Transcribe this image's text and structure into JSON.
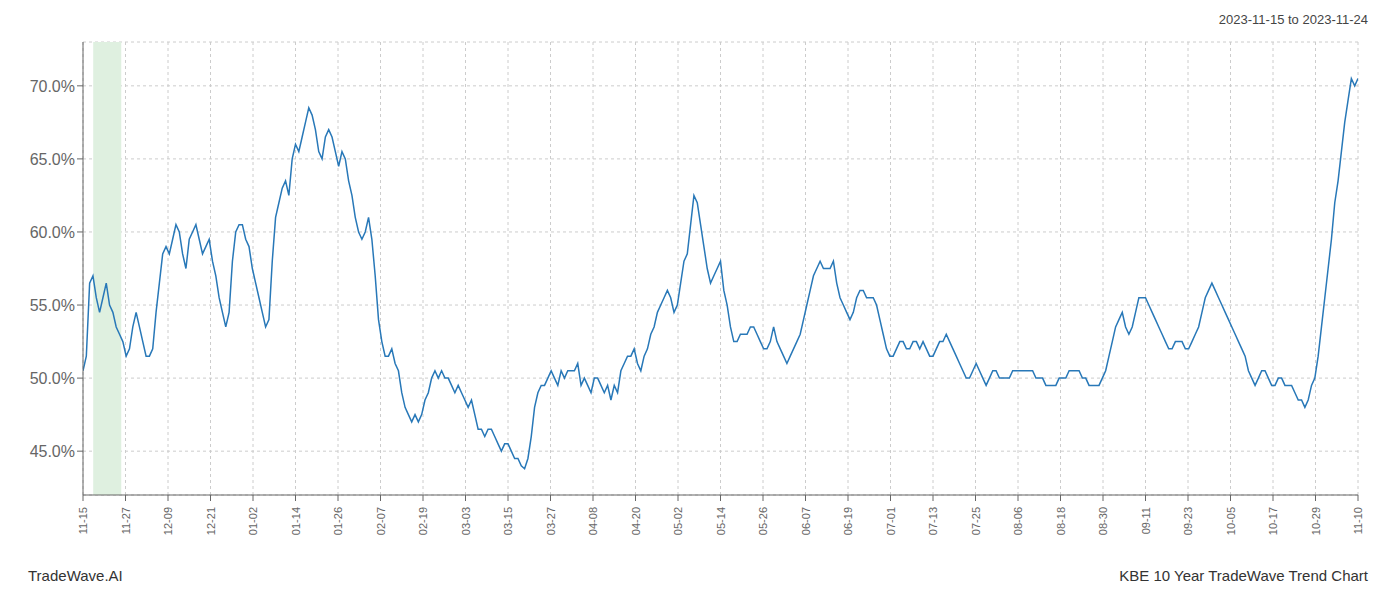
{
  "chart_data": {
    "type": "line",
    "title": "KBE 10 Year TradeWave Trend Chart",
    "subtitle": "2023-11-15 to 2023-11-24",
    "annotations": [
      "TradeWave.AI"
    ],
    "color": "#2878b8",
    "grid": true,
    "line_style": "solid",
    "highlight": {
      "x": [
        3.072,
        11.52
      ],
      "color": "#dff0e0"
    },
    "xlim": [
      0,
      384
    ],
    "xticks": [
      {
        "value": 0,
        "label": "11-15"
      },
      {
        "value": 12.8,
        "label": "11-27"
      },
      {
        "value": 25.6,
        "label": "12-09"
      },
      {
        "value": 38.4,
        "label": "12-21"
      },
      {
        "value": 51.2,
        "label": "01-02"
      },
      {
        "value": 64,
        "label": "01-14"
      },
      {
        "value": 76.8,
        "label": "01-26"
      },
      {
        "value": 89.6,
        "label": "02-07"
      },
      {
        "value": 102.4,
        "label": "02-19"
      },
      {
        "value": 115.2,
        "label": "03-03"
      },
      {
        "value": 128,
        "label": "03-15"
      },
      {
        "value": 140.8,
        "label": "03-27"
      },
      {
        "value": 153.6,
        "label": "04-08"
      },
      {
        "value": 166.4,
        "label": "04-20"
      },
      {
        "value": 179.2,
        "label": "05-02"
      },
      {
        "value": 192,
        "label": "05-14"
      },
      {
        "value": 204.8,
        "label": "05-26"
      },
      {
        "value": 217.6,
        "label": "06-07"
      },
      {
        "value": 230.4,
        "label": "06-19"
      },
      {
        "value": 243.2,
        "label": "07-01"
      },
      {
        "value": 256,
        "label": "07-13"
      },
      {
        "value": 268.8,
        "label": "07-25"
      },
      {
        "value": 281.6,
        "label": "08-06"
      },
      {
        "value": 294.4,
        "label": "08-18"
      },
      {
        "value": 307.2,
        "label": "08-30"
      },
      {
        "value": 320,
        "label": "09-11"
      },
      {
        "value": 332.8,
        "label": "09-23"
      },
      {
        "value": 345.6,
        "label": "10-05"
      },
      {
        "value": 358.4,
        "label": "10-17"
      },
      {
        "value": 371.2,
        "label": "10-29"
      },
      {
        "value": 384,
        "label": "11-10"
      }
    ],
    "ylim": [
      42.0,
      73.0
    ],
    "yticks": [
      {
        "value": 45.0,
        "label": "45.0%"
      },
      {
        "value": 50.0,
        "label": "50.0%"
      },
      {
        "value": 55.0,
        "label": "55.0%"
      },
      {
        "value": 60.0,
        "label": "60.0%"
      },
      {
        "value": 65.0,
        "label": "65.0%"
      },
      {
        "value": 70.0,
        "label": "70.0%"
      }
    ],
    "x": [
      0,
      1,
      2,
      3,
      4,
      5,
      6,
      7,
      8,
      9,
      10,
      11,
      12,
      13,
      14,
      15,
      16,
      17,
      18,
      19,
      20,
      21,
      22,
      23,
      24,
      25,
      26,
      27,
      28,
      29,
      30,
      31,
      32,
      33,
      34,
      35,
      36,
      37,
      38,
      39,
      40,
      41,
      42,
      43,
      44,
      45,
      46,
      47,
      48,
      49,
      50,
      51,
      52,
      53,
      54,
      55,
      56,
      57,
      58,
      59,
      60,
      61,
      62,
      63,
      64,
      65,
      66,
      67,
      68,
      69,
      70,
      71,
      72,
      73,
      74,
      75,
      76,
      77,
      78,
      79,
      80,
      81,
      82,
      83,
      84,
      85,
      86,
      87,
      88,
      89,
      90,
      91,
      92,
      93,
      94,
      95,
      96,
      97,
      98,
      99,
      100,
      101,
      102,
      103,
      104,
      105,
      106,
      107,
      108,
      109,
      110,
      111,
      112,
      113,
      114,
      115,
      116,
      117,
      118,
      119,
      120,
      121,
      122,
      123,
      124,
      125,
      126,
      127,
      128,
      129,
      130,
      131,
      132,
      133,
      134,
      135,
      136,
      137,
      138,
      139,
      140,
      141,
      142,
      143,
      144,
      145,
      146,
      147,
      148,
      149,
      150,
      151,
      152,
      153,
      154,
      155,
      156,
      157,
      158,
      159,
      160,
      161,
      162,
      163,
      164,
      165,
      166,
      167,
      168,
      169,
      170,
      171,
      172,
      173,
      174,
      175,
      176,
      177,
      178,
      179,
      180,
      181,
      182,
      183,
      184,
      185,
      186,
      187,
      188,
      189,
      190,
      191,
      192,
      193,
      194,
      195,
      196,
      197,
      198,
      199,
      200,
      201,
      202,
      203,
      204,
      205,
      206,
      207,
      208,
      209,
      210,
      211,
      212,
      213,
      214,
      215,
      216,
      217,
      218,
      219,
      220,
      221,
      222,
      223,
      224,
      225,
      226,
      227,
      228,
      229,
      230,
      231,
      232,
      233,
      234,
      235,
      236,
      237,
      238,
      239,
      240,
      241,
      242,
      243,
      244,
      245,
      246,
      247,
      248,
      249,
      250,
      251,
      252,
      253,
      254,
      255,
      256,
      257,
      258,
      259,
      260,
      261,
      262,
      263,
      264,
      265,
      266,
      267,
      268,
      269,
      270,
      271,
      272,
      273,
      274,
      275,
      276,
      277,
      278,
      279,
      280,
      281,
      282,
      283,
      284,
      285,
      286,
      287,
      288,
      289,
      290,
      291,
      292,
      293,
      294,
      295,
      296,
      297,
      298,
      299,
      300,
      301,
      302,
      303,
      304,
      305,
      306,
      307,
      308,
      309,
      310,
      311,
      312,
      313,
      314,
      315,
      316,
      317,
      318,
      319,
      320,
      321,
      322,
      323,
      324,
      325,
      326,
      327,
      328,
      329,
      330,
      331,
      332,
      333,
      334,
      335,
      336,
      337,
      338,
      339,
      340,
      341,
      342,
      343,
      344,
      345,
      346,
      347,
      348,
      349,
      350,
      351,
      352,
      353,
      354,
      355,
      356,
      357,
      358,
      359,
      360,
      361,
      362,
      363,
      364,
      365,
      366,
      367,
      368,
      369,
      370,
      371,
      372,
      373,
      374,
      375,
      376,
      377,
      378,
      379,
      380,
      381,
      382,
      383,
      384
    ],
    "values": [
      50.5,
      51.5,
      56.5,
      57.0,
      55.5,
      54.5,
      55.5,
      56.5,
      55.0,
      54.5,
      53.5,
      53.0,
      52.5,
      51.5,
      52.0,
      53.5,
      54.5,
      53.5,
      52.5,
      51.5,
      51.5,
      52.0,
      54.5,
      56.5,
      58.5,
      59.0,
      58.5,
      59.5,
      60.5,
      60.0,
      58.5,
      57.5,
      59.5,
      60.0,
      60.5,
      59.5,
      58.5,
      59.0,
      59.5,
      58.0,
      57.0,
      55.5,
      54.5,
      53.5,
      54.5,
      58.0,
      60.0,
      60.5,
      60.5,
      59.5,
      59.0,
      57.5,
      56.5,
      55.5,
      54.5,
      53.5,
      54.0,
      58.0,
      61.0,
      62.0,
      63.0,
      63.5,
      62.5,
      65.0,
      66.0,
      65.5,
      66.5,
      67.5,
      68.5,
      68.0,
      67.0,
      65.5,
      65.0,
      66.5,
      67.0,
      66.5,
      65.5,
      64.5,
      65.5,
      65.0,
      63.5,
      62.5,
      61.0,
      60.0,
      59.5,
      60.0,
      61.0,
      59.5,
      57.0,
      54.0,
      52.5,
      51.5,
      51.5,
      52.0,
      51.0,
      50.5,
      49.0,
      48.0,
      47.5,
      47.0,
      47.5,
      47.0,
      47.5,
      48.5,
      49.0,
      50.0,
      50.5,
      50.0,
      50.5,
      50.0,
      50.0,
      49.5,
      49.0,
      49.5,
      49.0,
      48.5,
      48.0,
      48.5,
      47.5,
      46.5,
      46.5,
      46.0,
      46.5,
      46.5,
      46.0,
      45.5,
      45.0,
      45.5,
      45.5,
      45.0,
      44.5,
      44.5,
      44.0,
      43.8,
      44.5,
      46.0,
      48.0,
      49.0,
      49.5,
      49.5,
      50.0,
      50.5,
      50.0,
      49.5,
      50.5,
      50.0,
      50.5,
      50.5,
      50.5,
      51.0,
      49.5,
      50.0,
      49.5,
      49.0,
      50.0,
      50.0,
      49.5,
      49.0,
      49.5,
      48.5,
      49.5,
      49.0,
      50.5,
      51.0,
      51.5,
      51.5,
      52.0,
      51.0,
      50.5,
      51.5,
      52.0,
      53.0,
      53.5,
      54.5,
      55.0,
      55.5,
      56.0,
      55.5,
      54.5,
      55.0,
      56.5,
      58.0,
      58.5,
      60.5,
      62.5,
      62.0,
      60.5,
      59.0,
      57.5,
      56.5,
      57.0,
      57.5,
      58.0,
      56.0,
      55.0,
      53.5,
      52.5,
      52.5,
      53.0,
      53.0,
      53.0,
      53.5,
      53.5,
      53.0,
      52.5,
      52.0,
      52.0,
      52.5,
      53.5,
      52.5,
      52.0,
      51.5,
      51.0,
      51.5,
      52.0,
      52.5,
      53.0,
      54.0,
      55.0,
      56.0,
      57.0,
      57.5,
      58.0,
      57.5,
      57.5,
      57.5,
      58.0,
      56.5,
      55.5,
      55.0,
      54.5,
      54.0,
      54.5,
      55.5,
      56.0,
      56.0,
      55.5,
      55.5,
      55.5,
      55.0,
      54.0,
      53.0,
      52.0,
      51.5,
      51.5,
      52.0,
      52.5,
      52.5,
      52.0,
      52.0,
      52.5,
      52.5,
      52.0,
      52.5,
      52.0,
      51.5,
      51.5,
      52.0,
      52.5,
      52.5,
      53.0,
      52.5,
      52.0,
      51.5,
      51.0,
      50.5,
      50.0,
      50.0,
      50.5,
      51.0,
      50.5,
      50.0,
      49.5,
      50.0,
      50.5,
      50.5,
      50.0,
      50.0,
      50.0,
      50.0,
      50.5,
      50.5,
      50.5,
      50.5,
      50.5,
      50.5,
      50.5,
      50.0,
      50.0,
      50.0,
      49.5,
      49.5,
      49.5,
      49.5,
      50.0,
      50.0,
      50.0,
      50.5,
      50.5,
      50.5,
      50.5,
      50.0,
      50.0,
      49.5,
      49.5,
      49.5,
      49.5,
      50.0,
      50.5,
      51.5,
      52.5,
      53.5,
      54.0,
      54.5,
      53.5,
      53.0,
      53.5,
      54.5,
      55.5,
      55.5,
      55.5,
      55.0,
      54.5,
      54.0,
      53.5,
      53.0,
      52.5,
      52.0,
      52.0,
      52.5,
      52.5,
      52.5,
      52.0,
      52.0,
      52.5,
      53.0,
      53.5,
      54.5,
      55.5,
      56.0,
      56.5,
      56.0,
      55.5,
      55.0,
      54.5,
      54.0,
      53.5,
      53.0,
      52.5,
      52.0,
      51.5,
      50.5,
      50.0,
      49.5,
      50.0,
      50.5,
      50.5,
      50.0,
      49.5,
      49.5,
      50.0,
      50.0,
      49.5,
      49.5,
      49.5,
      49.0,
      48.5,
      48.5,
      48.0,
      48.5,
      49.5,
      50.0,
      51.5,
      53.5,
      55.5,
      57.5,
      59.5,
      62.0,
      63.5,
      65.5,
      67.5,
      69.0,
      70.5,
      70.0,
      70.5
    ]
  }
}
